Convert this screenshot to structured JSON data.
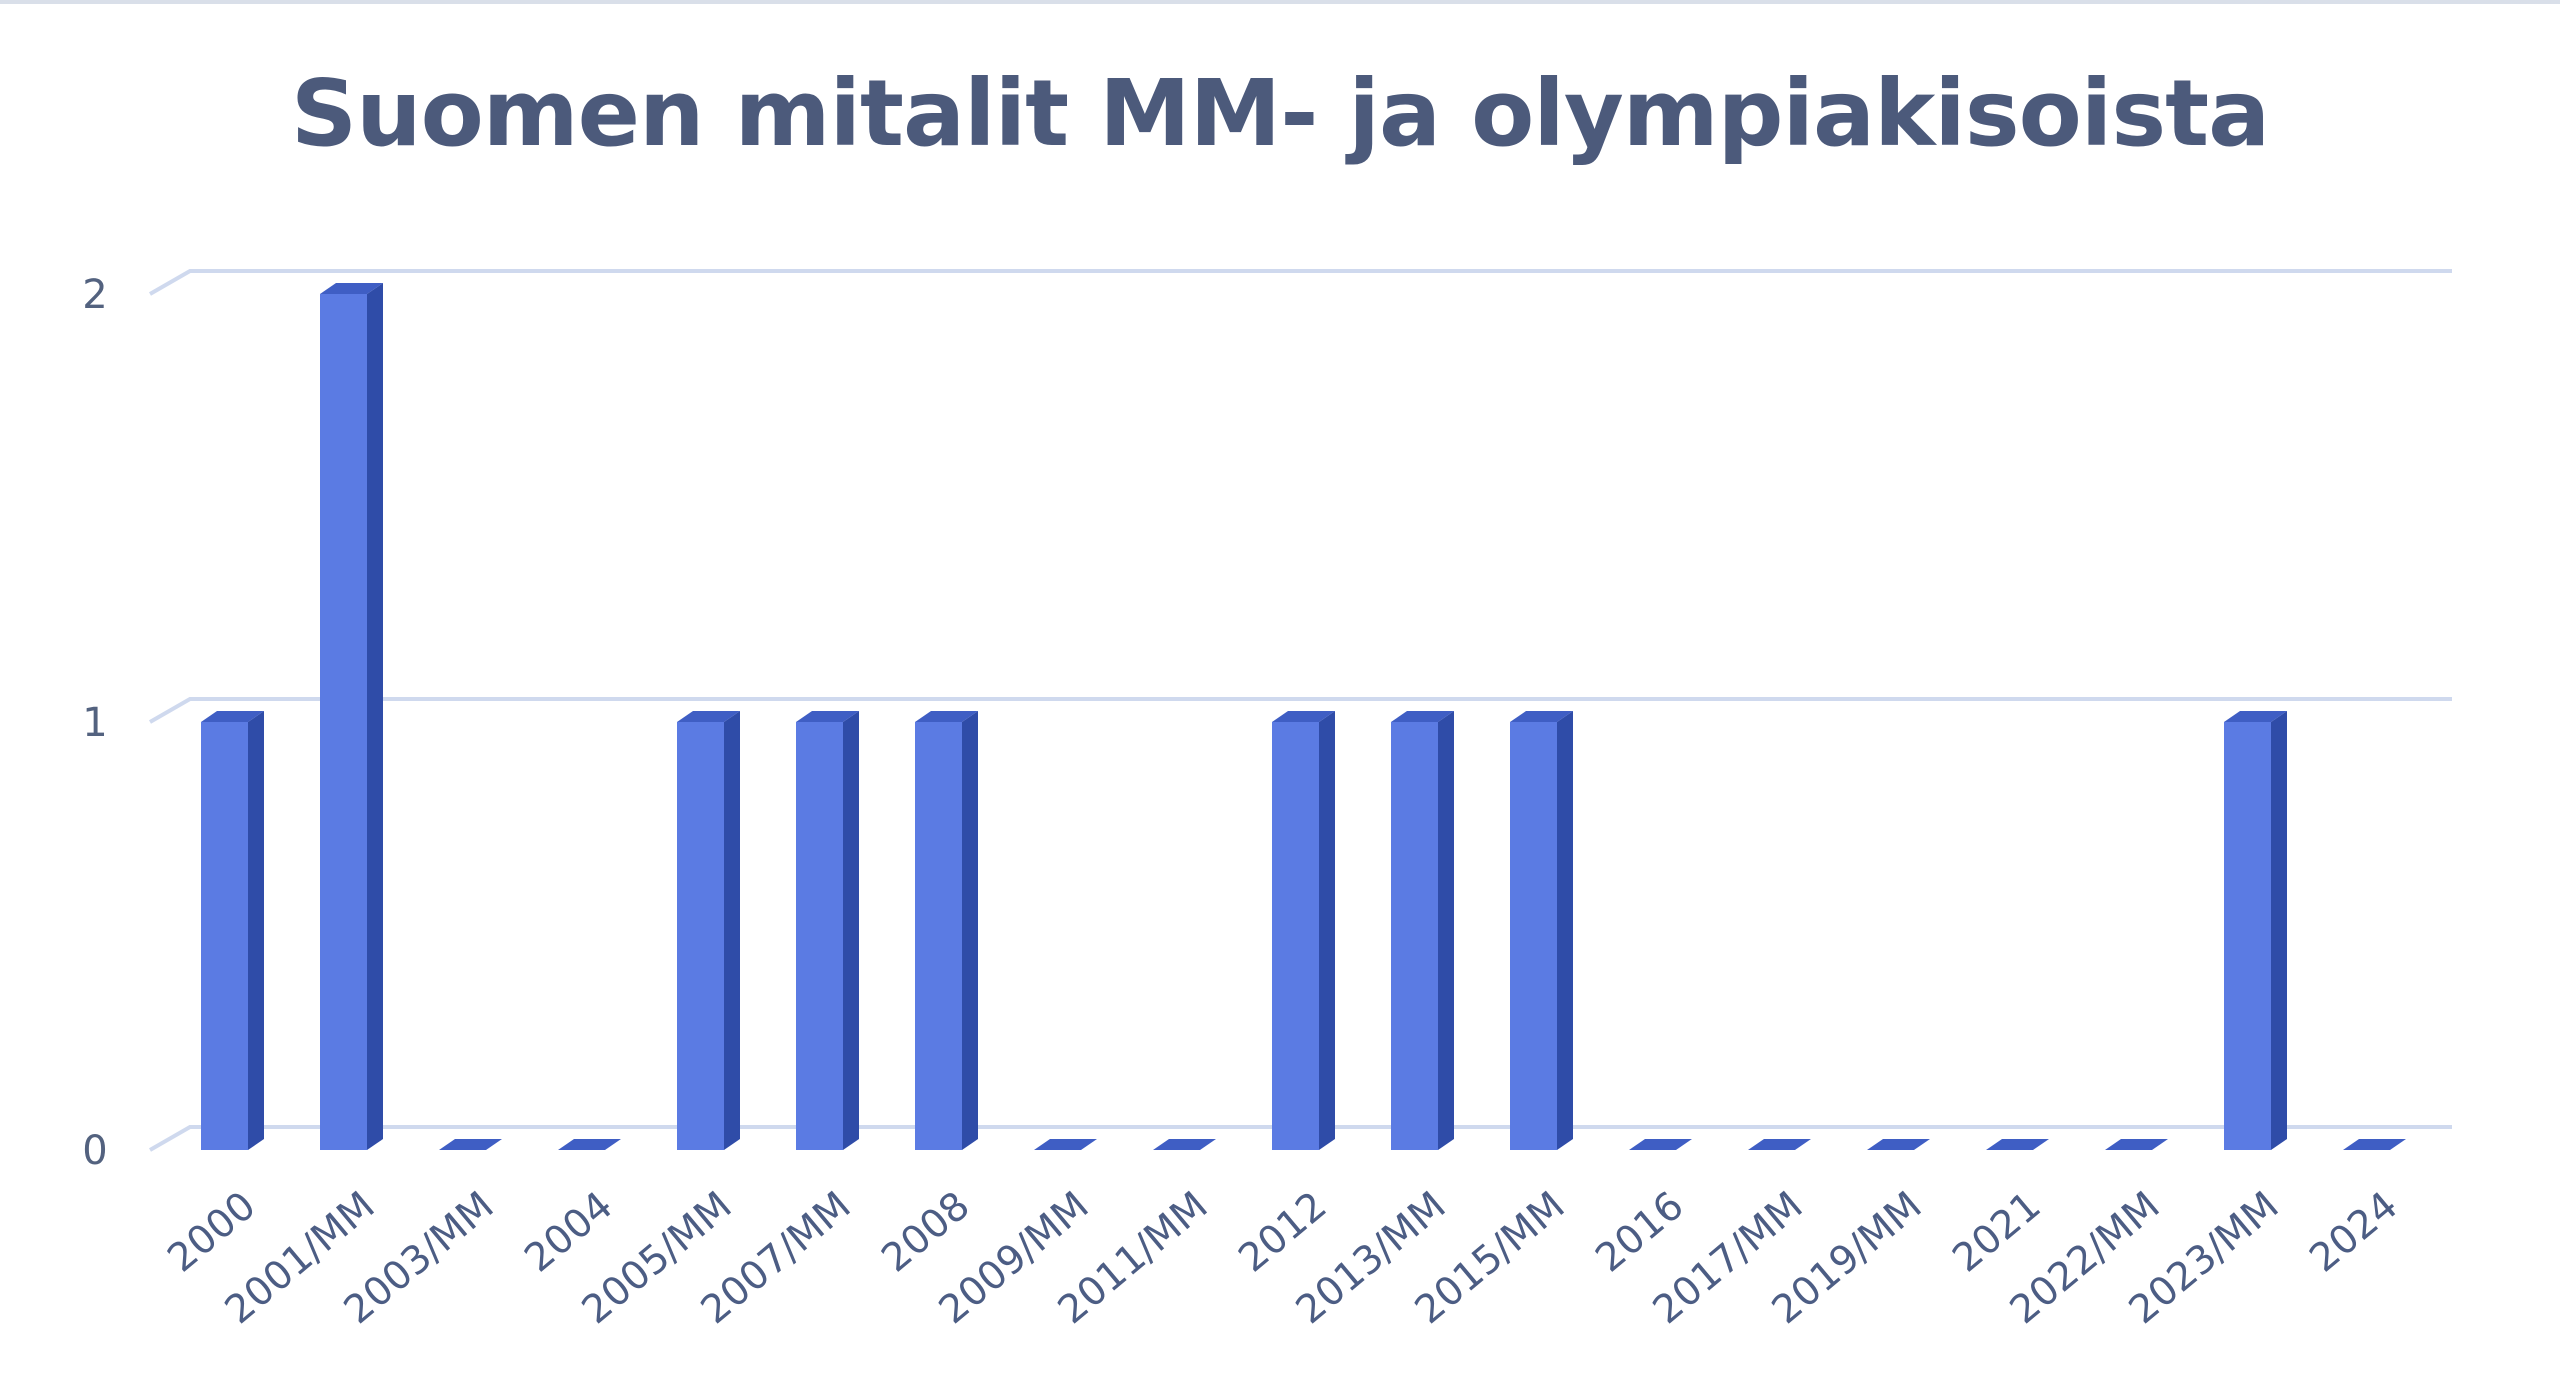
{
  "chart_data": {
    "type": "bar",
    "title": "Suomen mitalit MM- ja olympiakisoista",
    "xlabel": "",
    "ylabel": "",
    "categories": [
      "2000",
      "2001/MM",
      "2003/MM",
      "2004",
      "2005/MM",
      "2007/MM",
      "2008",
      "2009/MM",
      "2011/MM",
      "2012",
      "2013/MM",
      "2015/MM",
      "2016",
      "2017/MM",
      "2019/MM",
      "2021",
      "2022/MM",
      "2023/MM",
      "2024"
    ],
    "values": [
      1,
      2,
      0,
      0,
      1,
      1,
      1,
      0,
      0,
      1,
      1,
      1,
      0,
      0,
      0,
      0,
      0,
      1,
      0
    ],
    "ylim": [
      0,
      2
    ],
    "yticks": [
      "0",
      "1",
      "2"
    ],
    "grid": true,
    "legend": "none",
    "colors": {
      "bar_front": "#5b7be3",
      "bar_side": "#2f4ca8",
      "bar_top": "#3f5ec4",
      "grid": "#cfd9ee",
      "text": "#4c5a7b"
    }
  }
}
